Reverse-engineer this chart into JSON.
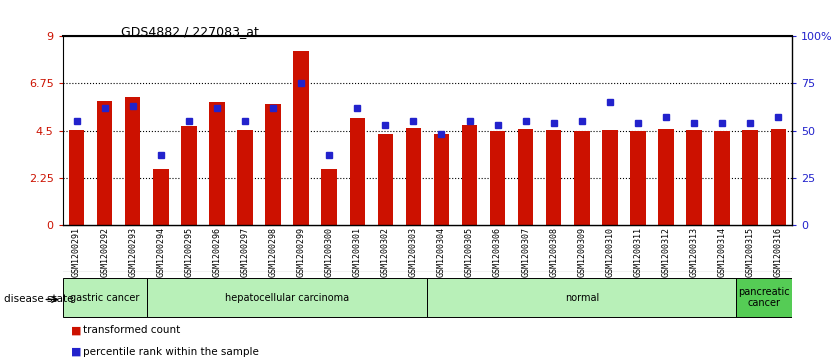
{
  "title": "GDS4882 / 227083_at",
  "samples": [
    "GSM1200291",
    "GSM1200292",
    "GSM1200293",
    "GSM1200294",
    "GSM1200295",
    "GSM1200296",
    "GSM1200297",
    "GSM1200298",
    "GSM1200299",
    "GSM1200300",
    "GSM1200301",
    "GSM1200302",
    "GSM1200303",
    "GSM1200304",
    "GSM1200305",
    "GSM1200306",
    "GSM1200307",
    "GSM1200308",
    "GSM1200309",
    "GSM1200310",
    "GSM1200311",
    "GSM1200312",
    "GSM1200313",
    "GSM1200314",
    "GSM1200315",
    "GSM1200316"
  ],
  "bar_values": [
    4.55,
    5.9,
    6.1,
    2.65,
    4.7,
    5.85,
    4.55,
    5.75,
    8.3,
    2.65,
    5.1,
    4.35,
    4.65,
    4.35,
    4.75,
    4.5,
    4.6,
    4.55,
    4.5,
    4.55,
    4.5,
    4.6,
    4.55,
    4.5,
    4.55,
    4.6
  ],
  "percentile_values": [
    55,
    62,
    63,
    37,
    55,
    62,
    55,
    62,
    75,
    37,
    62,
    53,
    55,
    48,
    55,
    53,
    55,
    54,
    55,
    65,
    54,
    57,
    54,
    54,
    54,
    57
  ],
  "disease_groups": [
    {
      "label": "gastric cancer",
      "start": 0,
      "end": 3
    },
    {
      "label": "hepatocellular carcinoma",
      "start": 3,
      "end": 13
    },
    {
      "label": "normal",
      "start": 13,
      "end": 24
    },
    {
      "label": "pancreatic\ncancer",
      "start": 24,
      "end": 26
    }
  ],
  "group_colors": [
    "#b8f0b8",
    "#b8f0b8",
    "#b8f0b8",
    "#55cc55"
  ],
  "bar_color": "#cc1100",
  "dot_color": "#2222cc",
  "ylim_left": [
    0,
    9
  ],
  "ylim_right": [
    0,
    100
  ],
  "yticks_left": [
    0,
    2.25,
    4.5,
    6.75,
    9
  ],
  "ytick_labels_left": [
    "0",
    "2.25",
    "4.5",
    "6.75",
    "9"
  ],
  "yticks_right": [
    0,
    25,
    50,
    75,
    100
  ],
  "ytick_labels_right": [
    "0",
    "25",
    "50",
    "75",
    "100%"
  ],
  "grid_values": [
    2.25,
    4.5,
    6.75
  ],
  "legend_items": [
    {
      "label": "transformed count",
      "color": "#cc1100"
    },
    {
      "label": "percentile rank within the sample",
      "color": "#2222cc"
    }
  ],
  "disease_state_label": "disease state",
  "background_color": "#ffffff",
  "tick_bg_color": "#cccccc"
}
